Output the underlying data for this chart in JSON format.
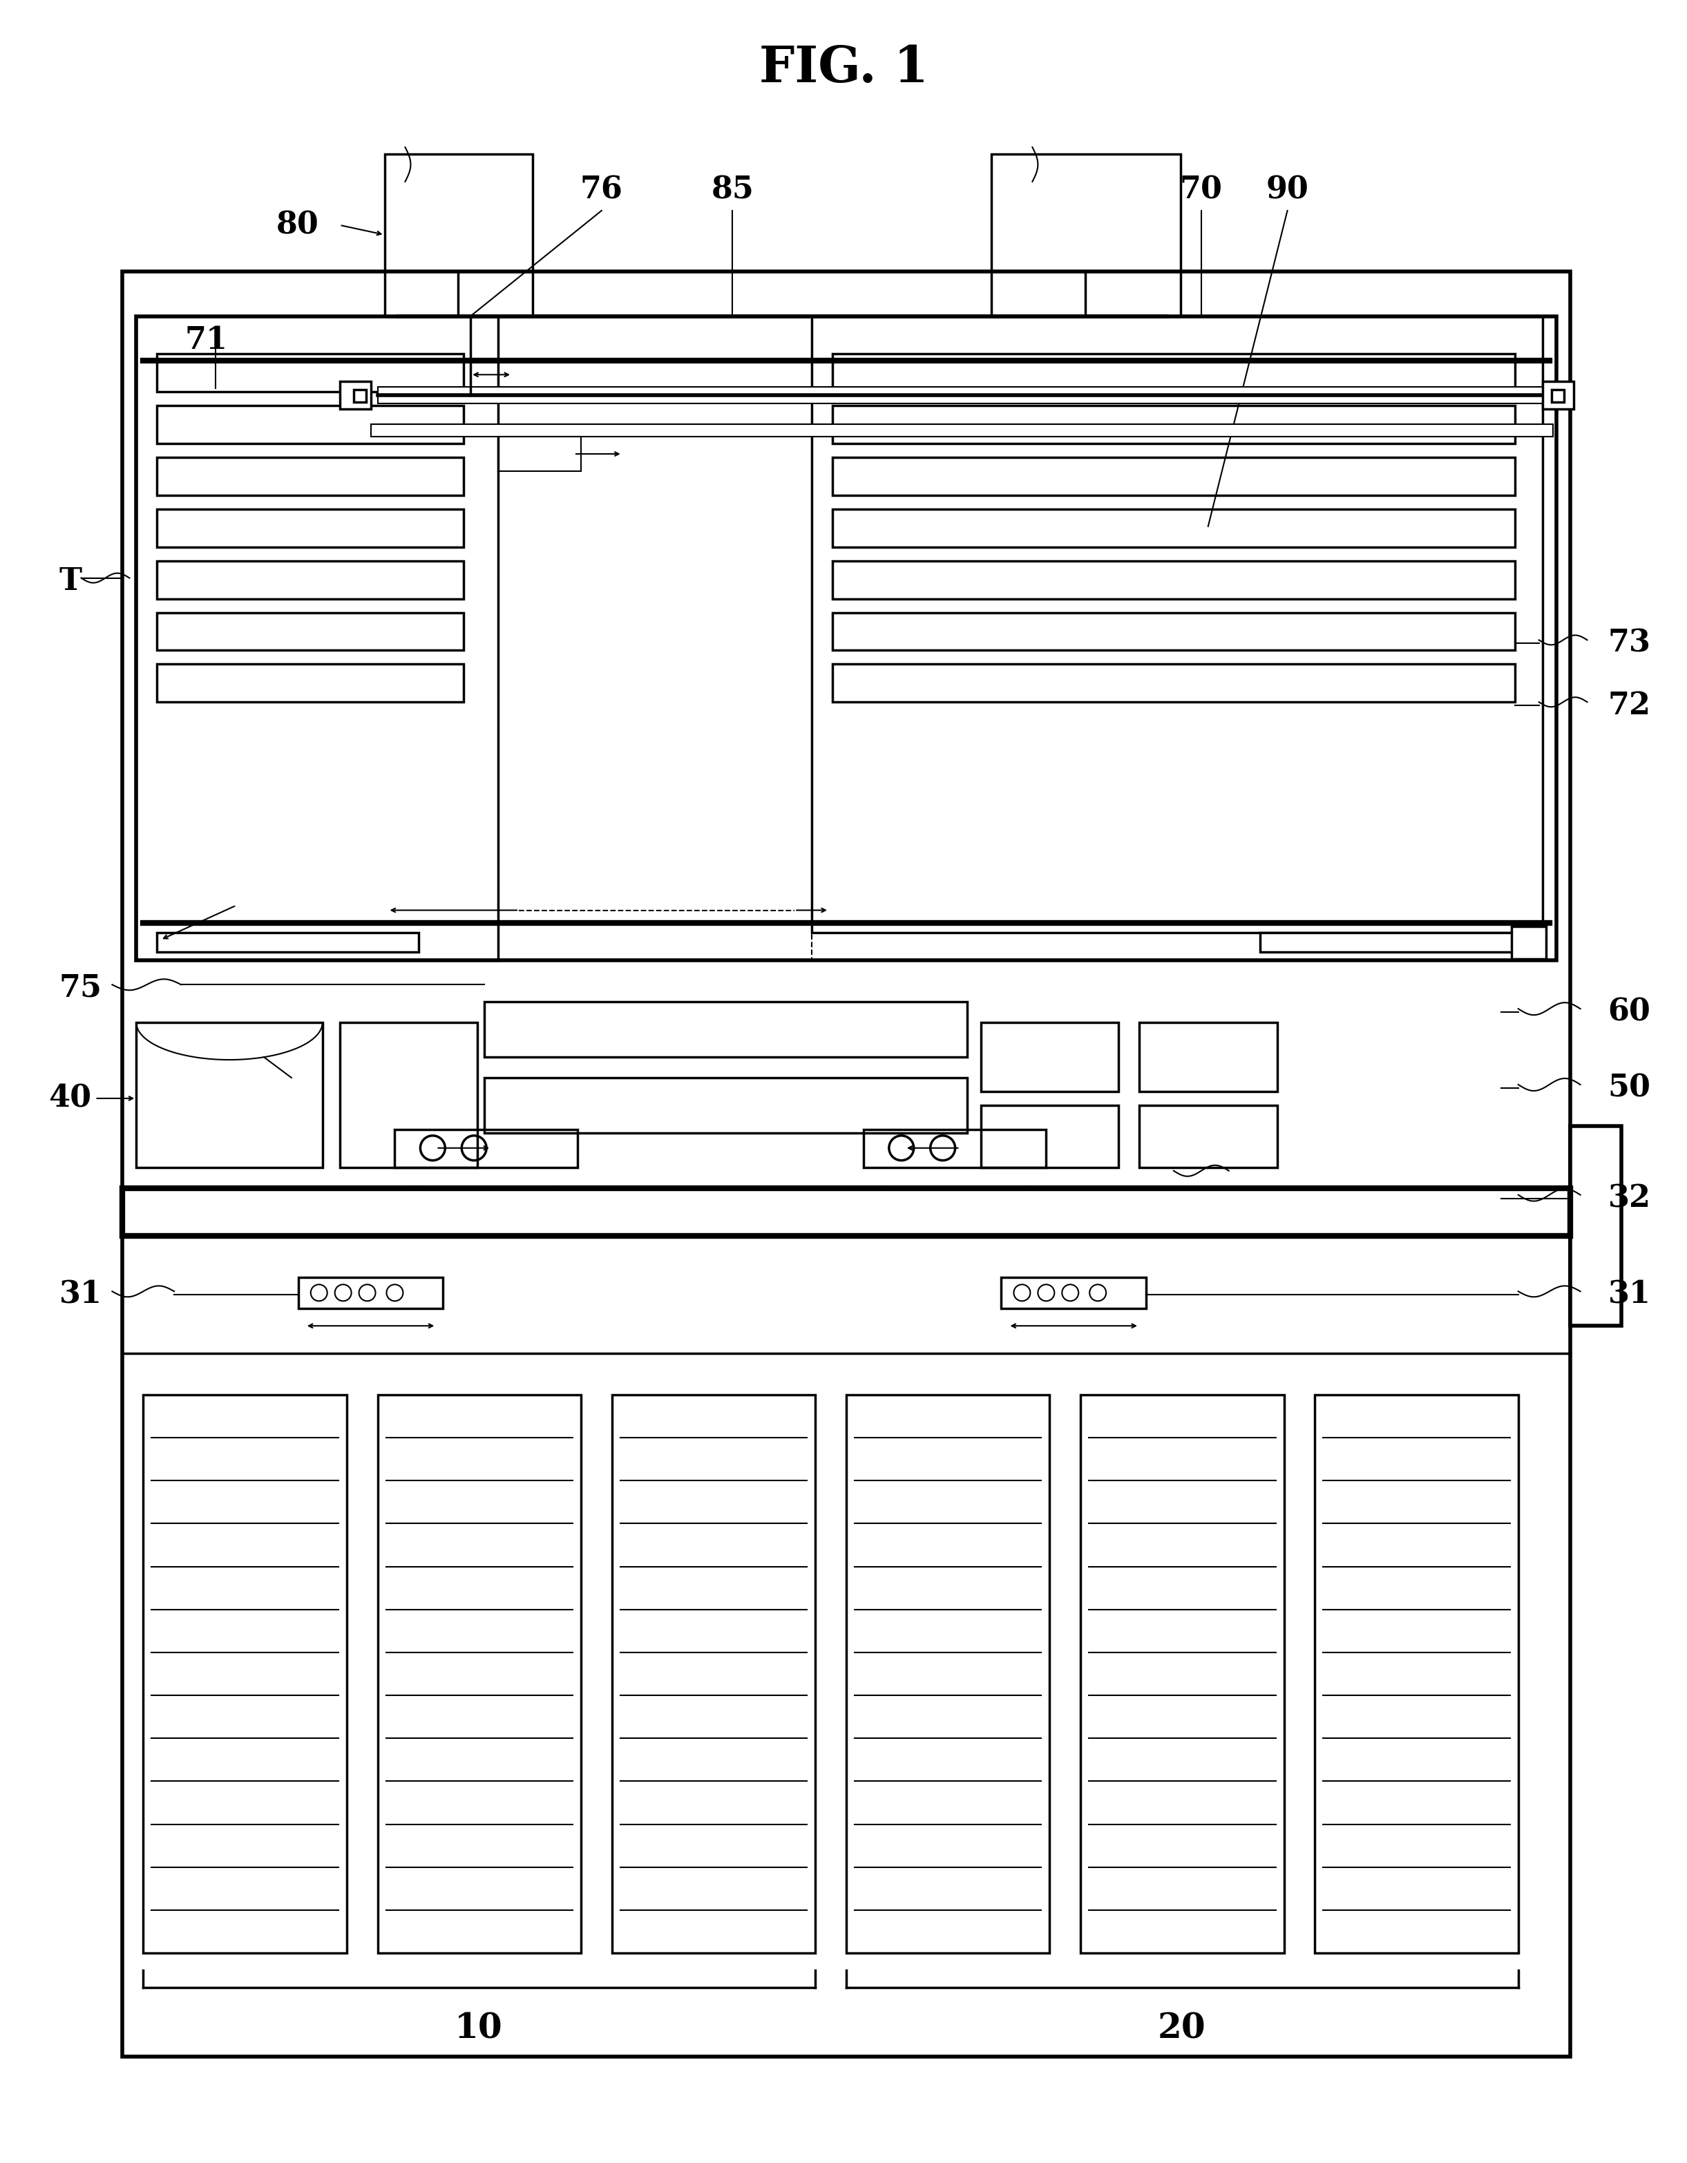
{
  "title": "FIG. 1",
  "bg_color": "#ffffff",
  "lc": "#000000",
  "fig_width": 24.42,
  "fig_height": 31.31
}
